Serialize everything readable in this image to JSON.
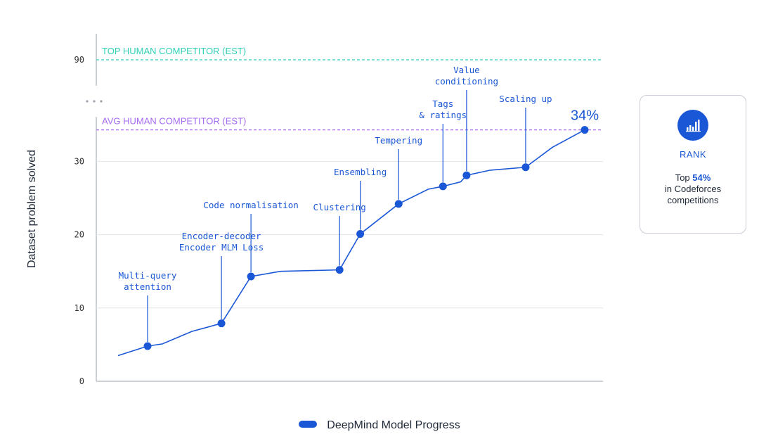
{
  "chart_data": {
    "type": "line",
    "ylabel": "Dataset problem solved",
    "y_ticks": [
      0,
      10,
      20,
      30,
      90
    ],
    "y_axis_break": true,
    "series": [
      {
        "name": "DeepMind Model Progress",
        "color": "#1a57d6",
        "points": [
          {
            "x": 0,
            "y": 3.5
          },
          {
            "x": 1,
            "y": 4.8,
            "marker": true,
            "label": [
              "Multi-query",
              "attention"
            ]
          },
          {
            "x": 1.5,
            "y": 5.1
          },
          {
            "x": 2.5,
            "y": 6.8
          },
          {
            "x": 3.5,
            "y": 7.9,
            "marker": true,
            "label": [
              "Encoder-decoder",
              "Encoder MLM Loss"
            ]
          },
          {
            "x": 4.5,
            "y": 14.3,
            "marker": true,
            "label": [
              "Code normalisation"
            ]
          },
          {
            "x": 5.5,
            "y": 15.0
          },
          {
            "x": 7.5,
            "y": 15.2,
            "marker": true,
            "label": [
              "Clustering"
            ]
          },
          {
            "x": 8.2,
            "y": 20.1,
            "marker": true,
            "label": [
              "Ensembling"
            ]
          },
          {
            "x": 9.5,
            "y": 24.2,
            "marker": true,
            "label": [
              "Tempering"
            ]
          },
          {
            "x": 10.5,
            "y": 26.2
          },
          {
            "x": 11.0,
            "y": 26.6,
            "marker": true,
            "label": [
              "Tags",
              "& ratings"
            ]
          },
          {
            "x": 11.6,
            "y": 27.2
          },
          {
            "x": 11.8,
            "y": 28.1,
            "marker": true,
            "label": [
              "Value",
              "conditioning"
            ]
          },
          {
            "x": 12.6,
            "y": 28.8
          },
          {
            "x": 13.8,
            "y": 29.2,
            "marker": true,
            "label": [
              "Scaling up"
            ]
          },
          {
            "x": 14.7,
            "y": 31.9
          },
          {
            "x": 15.8,
            "y": 34.3,
            "marker": true,
            "final": true
          }
        ]
      }
    ],
    "reference_lines": [
      {
        "name": "TOP HUMAN COMPETITOR (EST)",
        "value": 90,
        "color": "#2fcfb6"
      },
      {
        "name": "AVG HUMAN COMPETITOR (EST)",
        "value": 34.3,
        "color": "#a56bf0"
      }
    ],
    "final_label": "34%"
  },
  "rank_card": {
    "title": "RANK",
    "line1_prefix": "Top ",
    "line1_value": "54%",
    "line2": "in Codeforces",
    "line3": "competitions"
  },
  "legend": {
    "label": "DeepMind Model Progress"
  }
}
